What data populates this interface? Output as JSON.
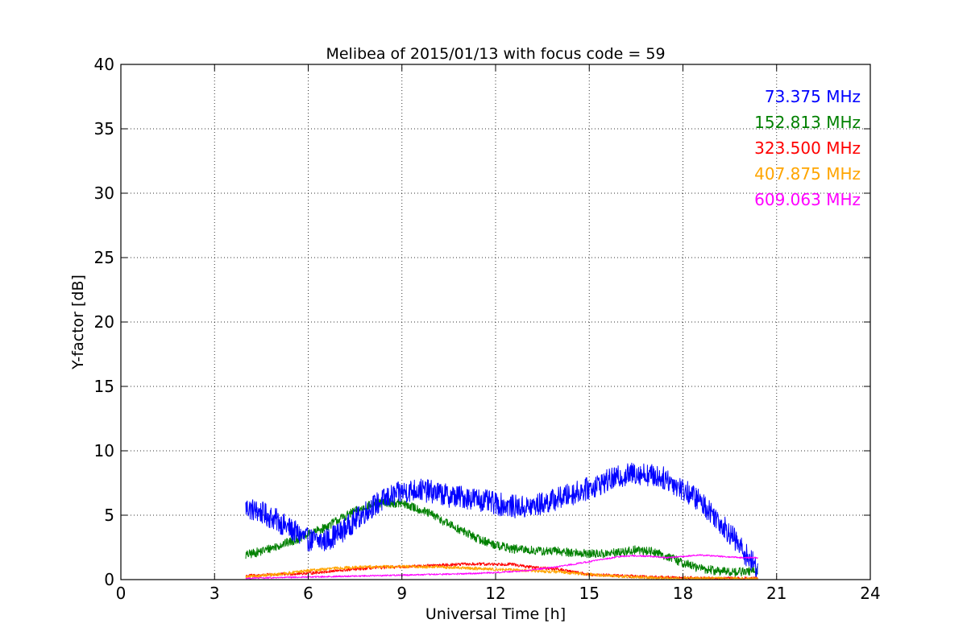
{
  "chart_data": {
    "type": "line",
    "title": "Melibea of 2015/01/13 with focus code = 59",
    "xlabel": "Universal Time [h]",
    "ylabel": "Y-factor [dB]",
    "xlim": [
      0,
      24
    ],
    "ylim": [
      0,
      40
    ],
    "xticks": [
      0,
      3,
      6,
      9,
      12,
      15,
      18,
      21,
      24
    ],
    "yticks": [
      0,
      5,
      10,
      15,
      20,
      25,
      30,
      35,
      40
    ],
    "grid": true,
    "legend_position": "top-right",
    "series": [
      {
        "name": "73.375 MHz",
        "color": "#0000ff",
        "noise": 0.9,
        "x": [
          4.0,
          4.5,
          5.0,
          5.5,
          6.0,
          6.5,
          7.0,
          7.5,
          8.0,
          8.5,
          9.0,
          9.5,
          10.0,
          10.5,
          11.0,
          11.5,
          12.0,
          12.5,
          13.0,
          13.5,
          14.0,
          14.5,
          15.0,
          15.5,
          16.0,
          16.5,
          17.0,
          17.5,
          18.0,
          18.5,
          19.0,
          19.5,
          20.0,
          20.4
        ],
        "y": [
          5.6,
          5.2,
          4.6,
          3.8,
          3.1,
          3.0,
          3.6,
          4.6,
          5.6,
          6.3,
          6.8,
          7.0,
          6.8,
          6.5,
          6.4,
          6.2,
          5.9,
          5.7,
          5.6,
          5.9,
          6.3,
          6.7,
          7.1,
          7.6,
          8.0,
          8.3,
          8.1,
          7.8,
          7.0,
          6.2,
          5.0,
          3.6,
          2.0,
          0.8
        ]
      },
      {
        "name": "152.813 MHz",
        "color": "#008000",
        "noise": 0.35,
        "x": [
          4.0,
          4.5,
          5.0,
          5.5,
          6.0,
          6.5,
          7.0,
          7.5,
          8.0,
          8.5,
          9.0,
          9.5,
          10.0,
          10.5,
          11.0,
          11.5,
          12.0,
          12.5,
          13.0,
          13.5,
          14.0,
          14.5,
          15.0,
          15.5,
          16.0,
          16.5,
          17.0,
          17.5,
          18.0,
          18.5,
          19.0,
          19.5,
          20.0,
          20.4
        ],
        "y": [
          1.9,
          2.2,
          2.6,
          3.0,
          3.5,
          4.0,
          4.7,
          5.3,
          5.8,
          6.0,
          5.9,
          5.5,
          5.0,
          4.3,
          3.7,
          3.1,
          2.7,
          2.4,
          2.3,
          2.2,
          2.2,
          2.1,
          2.0,
          2.0,
          2.1,
          2.3,
          2.2,
          1.8,
          1.3,
          0.9,
          0.7,
          0.6,
          0.6,
          0.7
        ]
      },
      {
        "name": "323.500 MHz",
        "color": "#ff0000",
        "noise": 0.12,
        "x": [
          4.0,
          5.0,
          6.0,
          7.0,
          8.0,
          9.0,
          10.0,
          11.0,
          12.0,
          12.5,
          13.0,
          13.5,
          14.0,
          14.5,
          15.0,
          16.0,
          17.0,
          18.0,
          19.0,
          20.0,
          20.4
        ],
        "y": [
          0.3,
          0.4,
          0.5,
          0.7,
          0.9,
          1.0,
          1.1,
          1.2,
          1.2,
          1.2,
          1.0,
          0.9,
          0.8,
          0.6,
          0.4,
          0.3,
          0.2,
          0.15,
          0.1,
          0.1,
          0.1
        ]
      },
      {
        "name": "407.875 MHz",
        "color": "#ffa500",
        "noise": 0.12,
        "x": [
          4.0,
          5.0,
          6.0,
          7.0,
          8.0,
          9.0,
          10.0,
          11.0,
          12.0,
          13.0,
          14.0,
          15.0,
          16.0,
          17.0,
          18.0,
          19.0,
          20.0,
          20.4
        ],
        "y": [
          0.2,
          0.4,
          0.7,
          0.9,
          1.0,
          1.0,
          1.0,
          0.9,
          0.8,
          0.7,
          0.6,
          0.4,
          0.25,
          0.15,
          0.1,
          0.1,
          0.05,
          0.05
        ]
      },
      {
        "name": "609.063 MHz",
        "color": "#ff00ff",
        "noise": 0.06,
        "x": [
          4.0,
          5.0,
          6.0,
          7.0,
          8.0,
          9.0,
          10.0,
          11.0,
          12.0,
          13.0,
          14.0,
          15.0,
          16.0,
          16.5,
          17.0,
          17.5,
          18.0,
          18.5,
          19.0,
          19.5,
          20.0,
          20.4
        ],
        "y": [
          0.1,
          0.15,
          0.2,
          0.25,
          0.3,
          0.35,
          0.4,
          0.45,
          0.55,
          0.7,
          1.0,
          1.4,
          1.8,
          1.85,
          1.8,
          1.7,
          1.8,
          1.9,
          1.85,
          1.75,
          1.7,
          1.7
        ]
      }
    ]
  }
}
